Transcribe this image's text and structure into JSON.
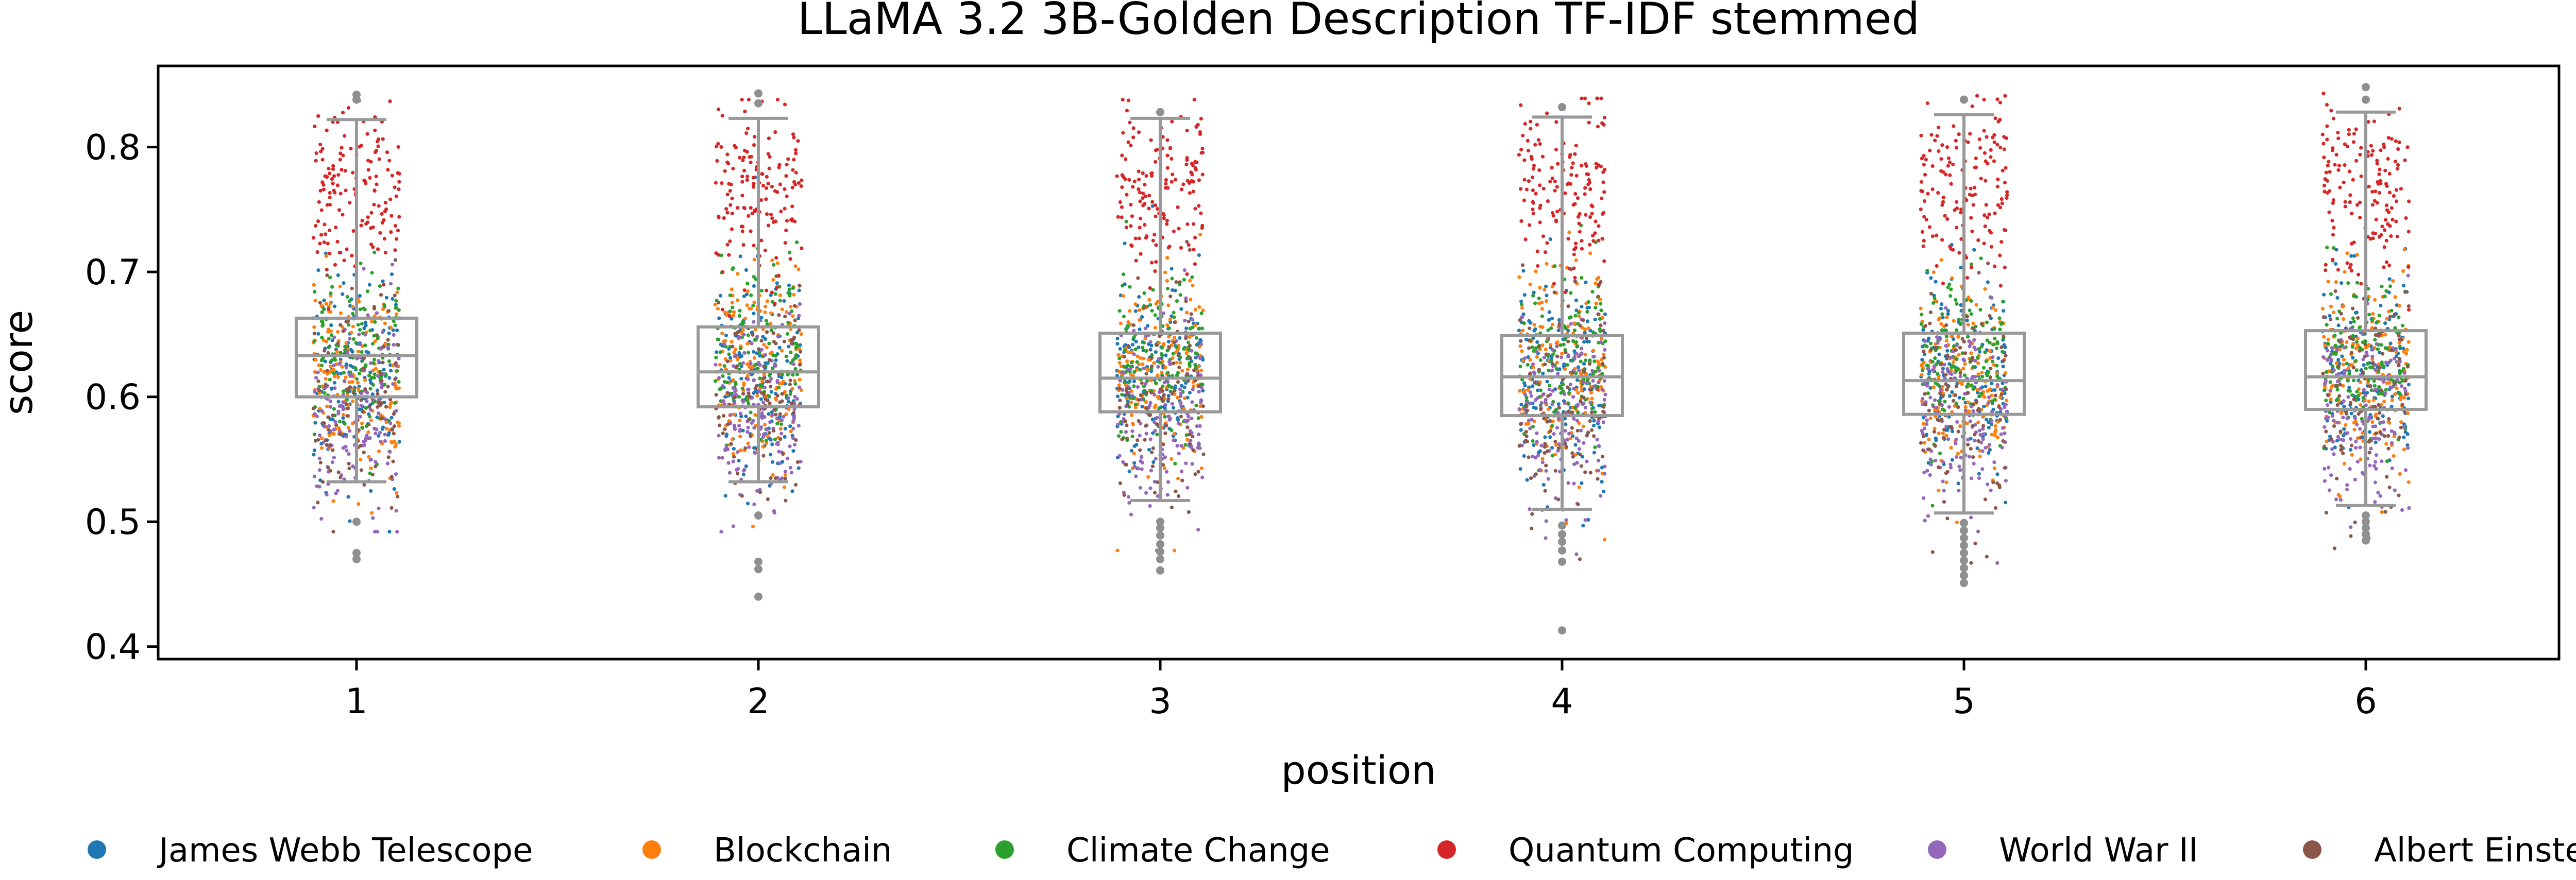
{
  "chart_data": {
    "type": "box",
    "title": "LLaMA 3.2 3B-Golden Description TF-IDF stemmed",
    "xlabel": "position",
    "ylabel": "score",
    "categories": [
      "1",
      "2",
      "3",
      "4",
      "5",
      "6"
    ],
    "ylim": [
      0.39,
      0.865
    ],
    "yticks": [
      0.4,
      0.5,
      0.6,
      0.7,
      0.8
    ],
    "ytick_labels": [
      "0.4",
      "0.5",
      "0.6",
      "0.7",
      "0.8"
    ],
    "grid": false,
    "legend_position": "bottom",
    "box_color": "#999999",
    "boxes": [
      {
        "position": "1",
        "whisker_low": 0.532,
        "q1": 0.6,
        "median": 0.633,
        "q3": 0.663,
        "whisker_high": 0.822,
        "outliers": [
          0.475,
          0.47,
          0.5,
          0.842,
          0.838
        ]
      },
      {
        "position": "2",
        "whisker_low": 0.532,
        "q1": 0.592,
        "median": 0.62,
        "q3": 0.656,
        "whisker_high": 0.823,
        "outliers": [
          0.468,
          0.462,
          0.44,
          0.505,
          0.843,
          0.835
        ]
      },
      {
        "position": "3",
        "whisker_low": 0.517,
        "q1": 0.588,
        "median": 0.615,
        "q3": 0.651,
        "whisker_high": 0.823,
        "outliers": [
          0.461,
          0.47,
          0.476,
          0.482,
          0.489,
          0.495,
          0.5,
          0.828
        ]
      },
      {
        "position": "4",
        "whisker_low": 0.51,
        "q1": 0.585,
        "median": 0.616,
        "q3": 0.649,
        "whisker_high": 0.824,
        "outliers": [
          0.413,
          0.468,
          0.477,
          0.484,
          0.49,
          0.497,
          0.832
        ]
      },
      {
        "position": "5",
        "whisker_low": 0.507,
        "q1": 0.586,
        "median": 0.613,
        "q3": 0.651,
        "whisker_high": 0.826,
        "outliers": [
          0.451,
          0.457,
          0.463,
          0.469,
          0.475,
          0.481,
          0.487,
          0.493,
          0.499,
          0.838
        ]
      },
      {
        "position": "6",
        "whisker_low": 0.513,
        "q1": 0.59,
        "median": 0.616,
        "q3": 0.653,
        "whisker_high": 0.828,
        "outliers": [
          0.485,
          0.49,
          0.495,
          0.5,
          0.505,
          0.838,
          0.848
        ]
      }
    ],
    "series": [
      {
        "name": "James Webb Telescope",
        "color": "#1f77b4",
        "center": 0.62,
        "spread": 0.04
      },
      {
        "name": "Blockchain",
        "color": "#ff7f0e",
        "center": 0.62,
        "spread": 0.04
      },
      {
        "name": "Climate Change",
        "color": "#2ca02c",
        "center": 0.63,
        "spread": 0.035
      },
      {
        "name": "Quantum Computing",
        "color": "#d62728",
        "center": 0.765,
        "spread": 0.035
      },
      {
        "name": "World War II",
        "color": "#9467bd",
        "center": 0.585,
        "spread": 0.04
      },
      {
        "name": "Albert Einstein",
        "color": "#8c564b",
        "center": 0.6,
        "spread": 0.045
      }
    ]
  }
}
